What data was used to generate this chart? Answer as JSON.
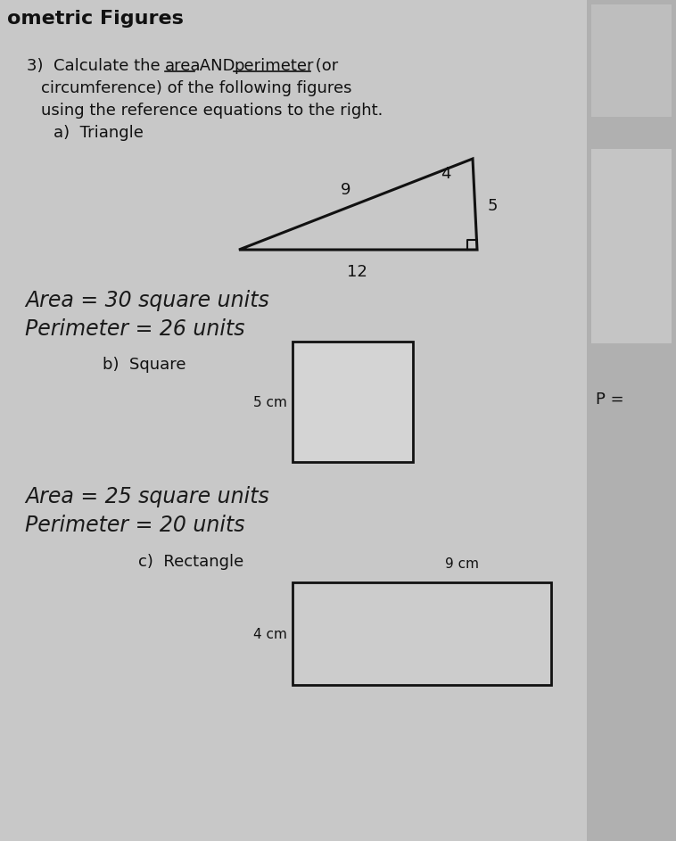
{
  "bg_color": "#c8c8c8",
  "title": "ometric Figures",
  "line1a": "3)  Calculate the ",
  "line1b": "area",
  "line1c": " AND ",
  "line1d": "perimeter",
  "line1e": " (or",
  "line2": "circumference) of the following figures",
  "line3": "using the reference equations to the right.",
  "sub_a": "a)  Triangle",
  "sub_b": "b)  Square",
  "sub_c": "c)  Rectangle",
  "tri_label_9": "9",
  "tri_label_4": "4",
  "tri_label_5": "5",
  "tri_label_12": "12",
  "tri_area": "Area = 30 square units",
  "tri_perim": "Perimeter = 26 units",
  "sq_label": "5 cm",
  "sq_area": "Area = 25 square units",
  "sq_perim": "Perimeter = 20 units",
  "rect_top": "9 cm",
  "rect_side": "4 cm",
  "p_label": "P =",
  "font_color": "#111111",
  "hand_color": "#1a1a1a",
  "right_panel_color": "#b0b0b0",
  "box1_color": "#bebebe",
  "box2_color": "#c5c5c5"
}
